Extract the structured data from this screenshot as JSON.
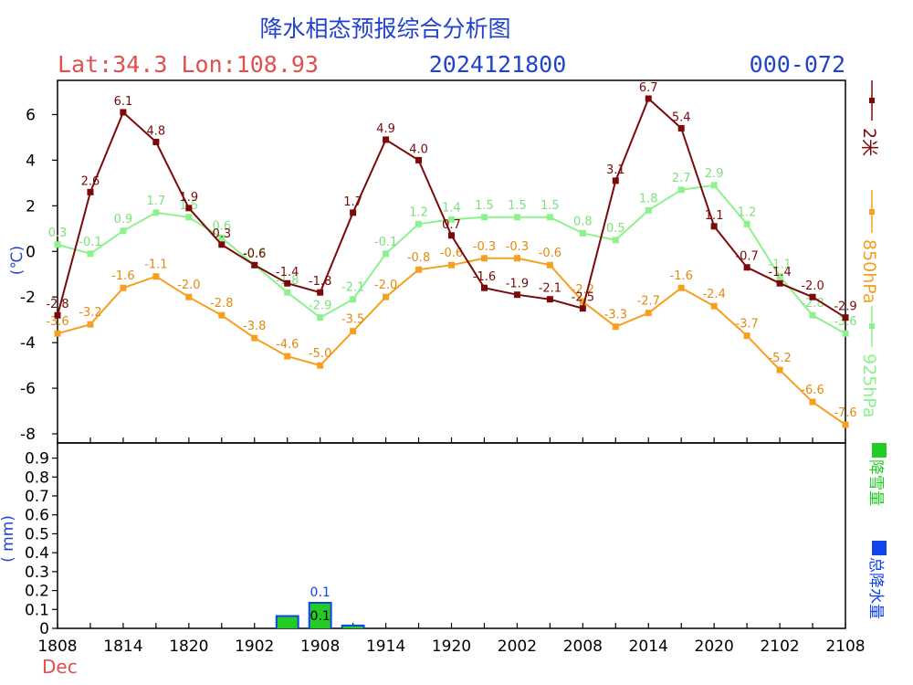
{
  "header": {
    "title": "降水相态预报综合分析图",
    "location": "Lat:34.3 Lon:108.93",
    "run": "2024121800",
    "range": "000-072"
  },
  "colors": {
    "t2m": "#7a0a0a",
    "t850": "#f5a020",
    "t925": "#8cf28c",
    "snow": "#22cc22",
    "total": "#1144ee",
    "title_blue": "#2244cc",
    "lat_red": "#e05050"
  },
  "chart_data": [
    {
      "type": "line",
      "x": [
        "1808",
        "1811",
        "1814",
        "1817",
        "1820",
        "1823",
        "1902",
        "1905",
        "1908",
        "1911",
        "1914",
        "1917",
        "1920",
        "1923",
        "2002",
        "2005",
        "2008",
        "2011",
        "2014",
        "2017",
        "2020",
        "2023",
        "2102",
        "2105",
        "2108"
      ],
      "ylabel": "(℃)",
      "ylim": [
        -8.4,
        7.5
      ],
      "yticks": [
        6,
        4,
        2,
        0,
        -2,
        -4,
        -6,
        -8
      ],
      "series": [
        {
          "name": "2米",
          "color_key": "t2m",
          "values": [
            -2.8,
            2.6,
            6.1,
            4.8,
            1.9,
            0.3,
            -0.6,
            -1.4,
            -1.8,
            1.7,
            4.9,
            4.0,
            0.7,
            -1.6,
            -1.9,
            -2.1,
            -2.5,
            3.1,
            6.7,
            5.4,
            1.1,
            -0.7,
            -1.4,
            -2.0,
            -2.9
          ]
        },
        {
          "name": "850hPa",
          "color_key": "t850",
          "values": [
            -3.6,
            -3.2,
            -1.6,
            -1.1,
            -2.0,
            -2.8,
            -3.8,
            -4.6,
            -5.0,
            -3.5,
            -2.0,
            -0.8,
            -0.6,
            -0.3,
            -0.3,
            -0.6,
            -2.2,
            -3.3,
            -2.7,
            -1.6,
            -2.4,
            -3.7,
            -5.2,
            -6.6,
            -7.6
          ]
        },
        {
          "name": "925hPa",
          "color_key": "t925",
          "values": [
            0.3,
            -0.1,
            0.9,
            1.7,
            1.5,
            0.6,
            -0.6,
            -1.8,
            -2.9,
            -2.1,
            -0.1,
            1.2,
            1.4,
            1.5,
            1.5,
            1.5,
            0.8,
            0.5,
            1.8,
            2.7,
            2.9,
            1.2,
            -1.1,
            -2.8,
            -3.6
          ]
        }
      ],
      "grid": false
    },
    {
      "type": "bar",
      "ylabel": "( mm)",
      "ylim": [
        0,
        0.98
      ],
      "yticks": [
        0,
        0.1,
        0.2,
        0.3,
        0.4,
        0.5,
        0.6,
        0.7,
        0.8,
        0.9
      ],
      "ytick_labels": [
        "0",
        "0.1",
        "0.2",
        "0.3",
        "0.4",
        "0.5",
        "0.6",
        "0.7",
        "0.8",
        "0.9"
      ],
      "xtick_labels": [
        "1808",
        "1814",
        "1820",
        "1902",
        "1908",
        "1914",
        "1920",
        "2002",
        "2008",
        "2014",
        "2020",
        "2102",
        "2108"
      ],
      "xtick_sub": "Dec",
      "series": [
        {
          "name": "降雪量",
          "color_key": "snow",
          "values": [
            0,
            0,
            0,
            0,
            0,
            0,
            0,
            0.07,
            0.14,
            0.02,
            0,
            0,
            0,
            0,
            0,
            0,
            0,
            0,
            0,
            0,
            0,
            0,
            0,
            0,
            0
          ]
        },
        {
          "name": "总降水量",
          "color_key": "total",
          "values": [
            0,
            0,
            0,
            0,
            0,
            0,
            0,
            0.07,
            0.14,
            0.02,
            0,
            0,
            0,
            0,
            0,
            0,
            0,
            0,
            0,
            0,
            0,
            0,
            0,
            0,
            0
          ]
        }
      ],
      "bar_labels": [
        {
          "index": 8,
          "top": "0.1",
          "inner": "0.1"
        }
      ],
      "grid": false
    }
  ]
}
